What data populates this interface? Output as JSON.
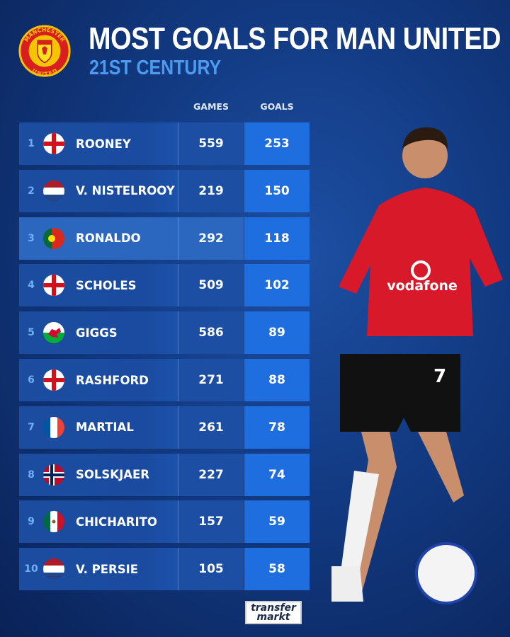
{
  "header": {
    "title": "MOST GOALS FOR MAN UNITED",
    "subtitle": "21ST CENTURY",
    "crest_text_top": "MANCHESTER",
    "crest_text_bottom": "UNITED"
  },
  "columns": {
    "games": "GAMES",
    "goals": "GOALS"
  },
  "colors": {
    "background": "#123a82",
    "goals_cell": "#1f6ee0",
    "rank": "#6fb0f5",
    "subtitle": "#4d9bf0"
  },
  "chart_data": {
    "type": "table",
    "title": "MOST GOALS FOR MAN UNITED",
    "subtitle": "21ST CENTURY",
    "columns": [
      "",
      "",
      "GAMES",
      "GOALS"
    ],
    "rows": [
      {
        "rank": "1",
        "flag": "england",
        "name": "ROONEY",
        "games": "559",
        "goals": "253"
      },
      {
        "rank": "2",
        "flag": "netherlands",
        "name": "V. NISTELROOY",
        "games": "219",
        "goals": "150"
      },
      {
        "rank": "3",
        "flag": "portugal",
        "name": "RONALDO",
        "games": "292",
        "goals": "118",
        "highlighted": true
      },
      {
        "rank": "4",
        "flag": "england",
        "name": "SCHOLES",
        "games": "509",
        "goals": "102"
      },
      {
        "rank": "5",
        "flag": "wales",
        "name": "GIGGS",
        "games": "586",
        "goals": "89"
      },
      {
        "rank": "6",
        "flag": "england",
        "name": "RASHFORD",
        "games": "271",
        "goals": "88"
      },
      {
        "rank": "7",
        "flag": "france",
        "name": "MARTIAL",
        "games": "261",
        "goals": "78"
      },
      {
        "rank": "8",
        "flag": "norway",
        "name": "SOLSKJAER",
        "games": "227",
        "goals": "74"
      },
      {
        "rank": "9",
        "flag": "mexico",
        "name": "CHICHARITO",
        "games": "157",
        "goals": "59"
      },
      {
        "rank": "10",
        "flag": "netherlands",
        "name": "V. PERSIE",
        "games": "105",
        "goals": "58"
      }
    ]
  },
  "player": {
    "shirt_sponsor": "vodafone",
    "shirt_number": "7"
  },
  "footer": {
    "logo_line1": "transfer",
    "logo_line2": "markt"
  }
}
